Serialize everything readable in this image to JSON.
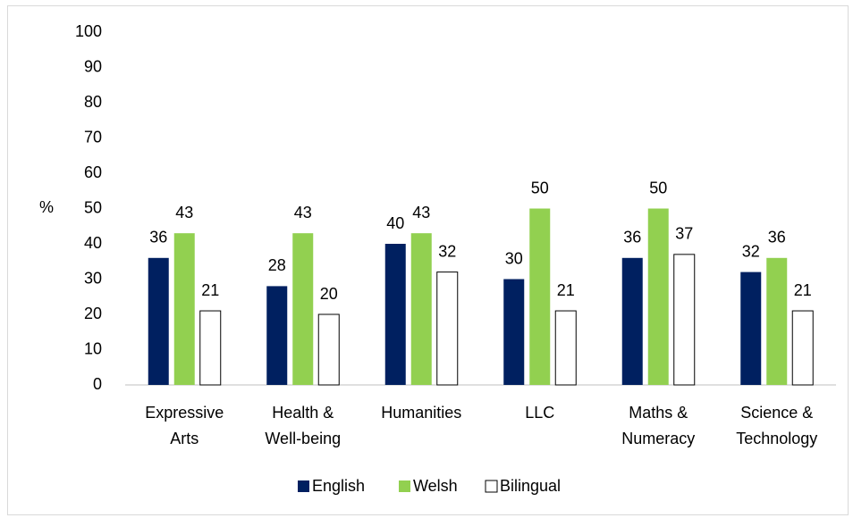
{
  "chart_data": {
    "type": "bar",
    "y_label": "%",
    "categories": [
      "Expressive Arts",
      "Health & Well-being",
      "Humanities",
      "LLC",
      "Maths & Numeracy",
      "Science & Technology"
    ],
    "series": [
      {
        "name": "English",
        "color": "#002060",
        "values": [
          36,
          28,
          40,
          30,
          36,
          32
        ]
      },
      {
        "name": "Welsh",
        "color": "#92d050",
        "values": [
          43,
          43,
          43,
          50,
          50,
          36
        ]
      },
      {
        "name": "Bilingual",
        "color": "#ffffff",
        "values": [
          21,
          20,
          32,
          21,
          37,
          21
        ]
      }
    ],
    "ylim": [
      0,
      100
    ],
    "yticks": [
      0,
      10,
      20,
      30,
      40,
      50,
      60,
      70,
      80,
      90,
      100
    ],
    "grid": false,
    "legend": "bottom"
  }
}
